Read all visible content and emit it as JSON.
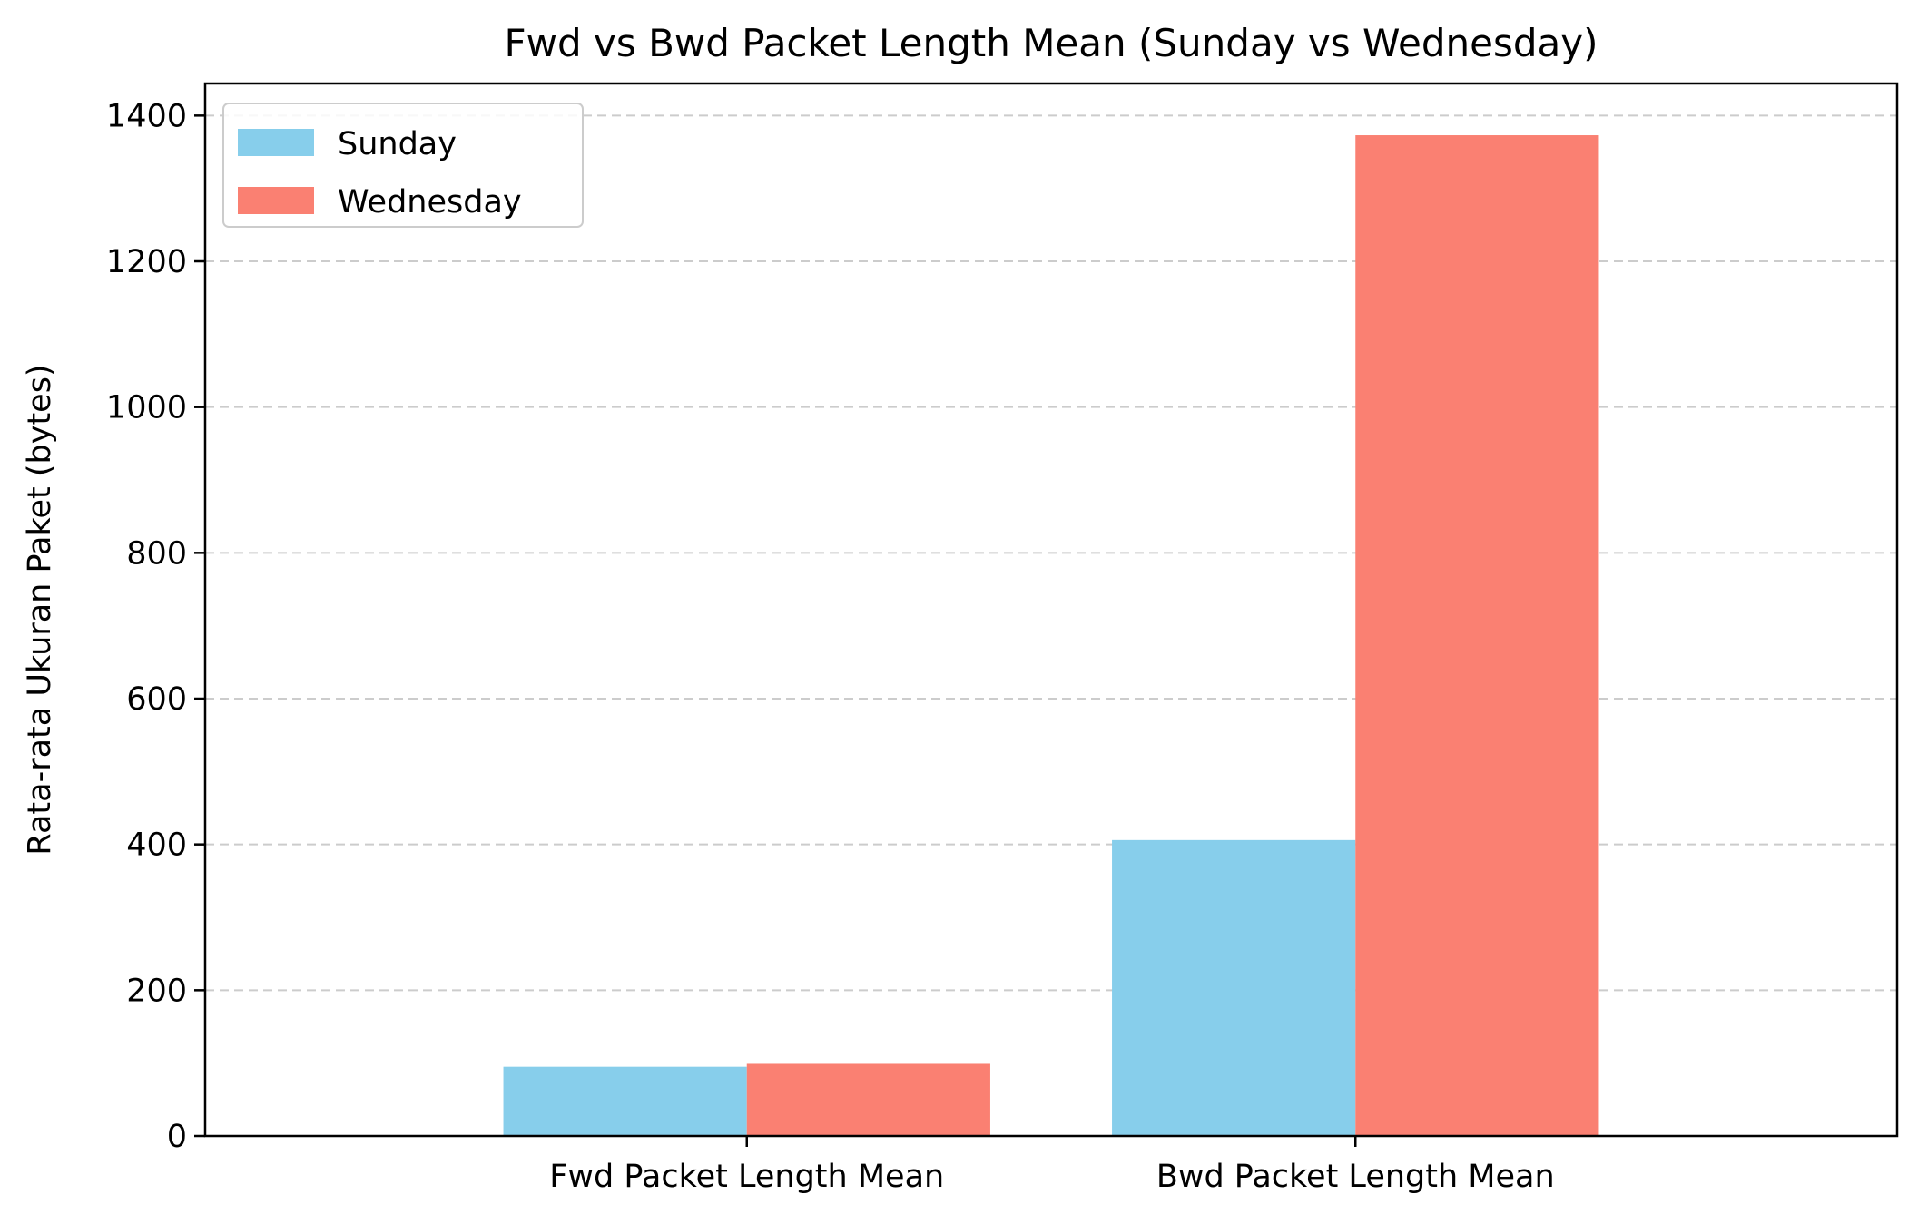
{
  "chart_data": {
    "type": "bar",
    "title": "Fwd vs Bwd Packet Length Mean (Sunday vs Wednesday)",
    "xlabel": "",
    "ylabel": "Rata-rata Ukuran Paket (bytes)",
    "categories": [
      "Fwd Packet Length Mean",
      "Bwd Packet Length Mean"
    ],
    "series": [
      {
        "name": "Sunday",
        "color": "#87CEEB",
        "values": [
          95,
          406
        ]
      },
      {
        "name": "Wednesday",
        "color": "#FA8072",
        "values": [
          99,
          1373
        ]
      }
    ],
    "ylim": [
      0,
      1444
    ],
    "yticks": [
      0,
      200,
      400,
      600,
      800,
      1000,
      1200,
      1400
    ],
    "grid": "y-dashed",
    "legend_position": "upper-left"
  }
}
